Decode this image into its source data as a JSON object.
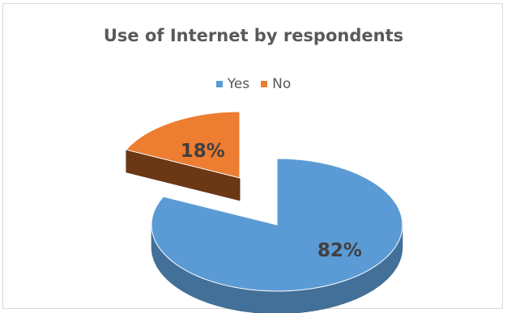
{
  "chart_data": {
    "type": "pie",
    "title": "Use of Internet by respondents",
    "legend_position": "top",
    "categories": [
      "Yes",
      "No"
    ],
    "values": [
      82,
      18
    ],
    "data_labels": [
      "82%",
      "18%"
    ],
    "exploded": "No",
    "colors": [
      "#5b9bd5",
      "#ed7d31"
    ],
    "style": "3d"
  }
}
